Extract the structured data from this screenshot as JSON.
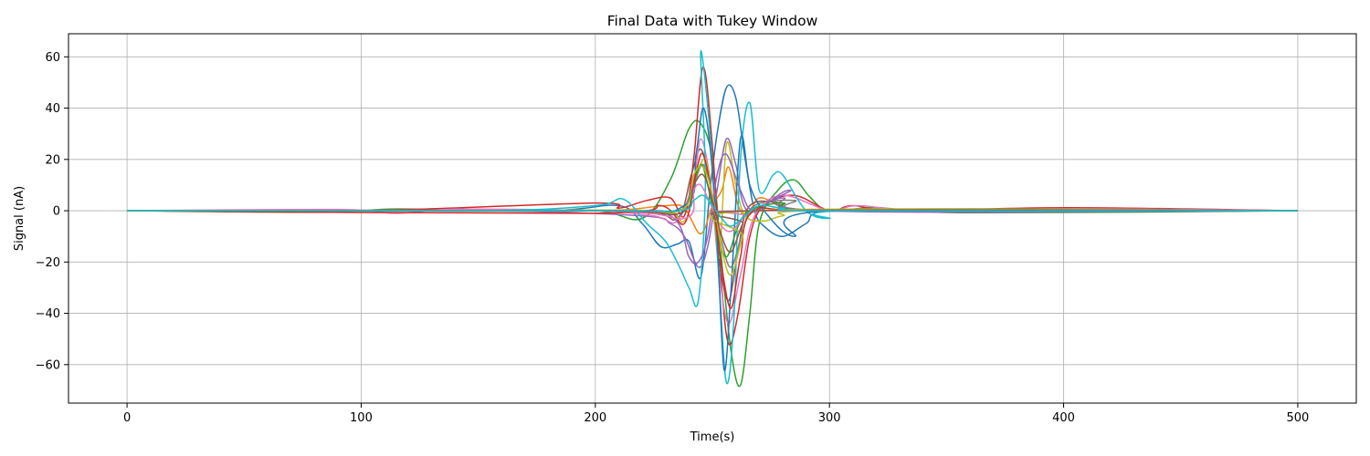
{
  "chart_data": {
    "type": "line",
    "title": "Final Data with Tukey Window",
    "xlabel": "Time(s)",
    "ylabel": "Signal (nA)",
    "xlim": [
      -25,
      525
    ],
    "ylim": [
      -75,
      69
    ],
    "xticks": [
      0,
      100,
      200,
      300,
      400,
      500
    ],
    "yticks": [
      -60,
      -40,
      -20,
      0,
      20,
      40,
      60
    ],
    "xtick_labels": [
      "0",
      "100",
      "200",
      "300",
      "400",
      "500"
    ],
    "ytick_labels": [
      "−60",
      "−40",
      "−20",
      "0",
      "20",
      "40",
      "60"
    ],
    "grid": true,
    "legend": "none",
    "series": [
      {
        "color": "#1f77b4",
        "points": [
          [
            0,
            0
          ],
          [
            100,
            0
          ],
          [
            180,
            0
          ],
          [
            210,
            2
          ],
          [
            220,
            -5
          ],
          [
            228,
            -14
          ],
          [
            235,
            -13
          ],
          [
            240,
            -12
          ],
          [
            245,
            -26
          ],
          [
            249,
            8
          ],
          [
            252,
            30
          ],
          [
            256,
            48
          ],
          [
            260,
            44
          ],
          [
            264,
            20
          ],
          [
            268,
            0
          ],
          [
            272,
            -6
          ],
          [
            280,
            -10
          ],
          [
            290,
            -5
          ],
          [
            300,
            0
          ],
          [
            360,
            0
          ],
          [
            500,
            0
          ]
        ]
      },
      {
        "color": "#ff7f0e",
        "points": [
          [
            0,
            0
          ],
          [
            100,
            0
          ],
          [
            200,
            0
          ],
          [
            230,
            2
          ],
          [
            238,
            1
          ],
          [
            245,
            -9
          ],
          [
            250,
            2
          ],
          [
            254,
            8
          ],
          [
            257,
            17
          ],
          [
            261,
            2
          ],
          [
            265,
            -2
          ],
          [
            270,
            5
          ],
          [
            280,
            2
          ],
          [
            300,
            0
          ],
          [
            500,
            0
          ]
        ]
      },
      {
        "color": "#2ca02c",
        "points": [
          [
            0,
            0
          ],
          [
            80,
            -0.6
          ],
          [
            115,
            0.7
          ],
          [
            150,
            0
          ],
          [
            200,
            0
          ],
          [
            220,
            -3
          ],
          [
            232,
            12
          ],
          [
            240,
            32
          ],
          [
            245,
            34
          ],
          [
            250,
            20
          ],
          [
            254,
            -20
          ],
          [
            258,
            -55
          ],
          [
            262,
            -68
          ],
          [
            266,
            -40
          ],
          [
            270,
            -5
          ],
          [
            278,
            8
          ],
          [
            285,
            12
          ],
          [
            292,
            5
          ],
          [
            300,
            0
          ],
          [
            320,
            1.2
          ],
          [
            360,
            -0.8
          ],
          [
            500,
            0
          ]
        ]
      },
      {
        "color": "#d62728",
        "points": [
          [
            0,
            0
          ],
          [
            100,
            0
          ],
          [
            200,
            3
          ],
          [
            210,
            1
          ],
          [
            222,
            4
          ],
          [
            232,
            5
          ],
          [
            238,
            -2
          ],
          [
            242,
            20
          ],
          [
            246,
            56
          ],
          [
            250,
            25
          ],
          [
            254,
            -30
          ],
          [
            257,
            -52
          ],
          [
            261,
            -40
          ],
          [
            266,
            -10
          ],
          [
            272,
            2
          ],
          [
            285,
            6
          ],
          [
            300,
            0
          ],
          [
            310,
            2
          ],
          [
            330,
            0
          ],
          [
            402,
            1.2
          ],
          [
            500,
            0
          ]
        ]
      },
      {
        "color": "#9467bd",
        "points": [
          [
            0,
            0
          ],
          [
            150,
            0
          ],
          [
            220,
            -2
          ],
          [
            232,
            -5
          ],
          [
            238,
            -10
          ],
          [
            244,
            -22
          ],
          [
            248,
            -14
          ],
          [
            252,
            8
          ],
          [
            256,
            28
          ],
          [
            260,
            18
          ],
          [
            265,
            0
          ],
          [
            280,
            5
          ],
          [
            300,
            0
          ],
          [
            500,
            0
          ]
        ]
      },
      {
        "color": "#8c564b",
        "points": [
          [
            0,
            0
          ],
          [
            150,
            0
          ],
          [
            220,
            0
          ],
          [
            235,
            -3
          ],
          [
            241,
            14
          ],
          [
            245,
            24
          ],
          [
            249,
            10
          ],
          [
            253,
            -20
          ],
          [
            257,
            -35
          ],
          [
            261,
            -15
          ],
          [
            266,
            2
          ],
          [
            280,
            3
          ],
          [
            300,
            0
          ],
          [
            500,
            0
          ]
        ]
      },
      {
        "color": "#e377c2",
        "points": [
          [
            0,
            0
          ],
          [
            90,
            0.5
          ],
          [
            115,
            -1
          ],
          [
            140,
            0.6
          ],
          [
            200,
            0
          ],
          [
            225,
            -2
          ],
          [
            235,
            -4
          ],
          [
            242,
            12
          ],
          [
            245,
            28
          ],
          [
            249,
            12
          ],
          [
            253,
            -25
          ],
          [
            257,
            -44
          ],
          [
            262,
            -25
          ],
          [
            268,
            -2
          ],
          [
            280,
            6
          ],
          [
            300,
            0
          ],
          [
            312,
            2
          ],
          [
            340,
            0
          ],
          [
            405,
            0.8
          ],
          [
            500,
            0
          ]
        ]
      },
      {
        "color": "#7f7f7f",
        "points": [
          [
            0,
            0
          ],
          [
            150,
            0
          ],
          [
            225,
            0
          ],
          [
            236,
            -2
          ],
          [
            242,
            10
          ],
          [
            246,
            18
          ],
          [
            250,
            6
          ],
          [
            254,
            -12
          ],
          [
            258,
            -22
          ],
          [
            263,
            -8
          ],
          [
            268,
            2
          ],
          [
            285,
            4
          ],
          [
            300,
            0
          ],
          [
            500,
            0
          ]
        ]
      },
      {
        "color": "#bcbd22",
        "points": [
          [
            0,
            0
          ],
          [
            150,
            0
          ],
          [
            225,
            0
          ],
          [
            238,
            -4
          ],
          [
            243,
            13
          ],
          [
            247,
            20
          ],
          [
            250,
            5
          ],
          [
            253,
            -18
          ],
          [
            256,
            26
          ],
          [
            260,
            10
          ],
          [
            264,
            -2
          ],
          [
            272,
            -4
          ],
          [
            280,
            -2
          ],
          [
            300,
            0
          ],
          [
            500,
            0
          ]
        ]
      },
      {
        "color": "#17becf",
        "points": [
          [
            0,
            0
          ],
          [
            150,
            0
          ],
          [
            200,
            2
          ],
          [
            212,
            4.5
          ],
          [
            222,
            -5
          ],
          [
            230,
            -12
          ],
          [
            236,
            -22
          ],
          [
            240,
            -30
          ],
          [
            244,
            -35
          ],
          [
            247,
            10
          ],
          [
            245,
            62
          ],
          [
            249,
            30
          ],
          [
            253,
            -30
          ],
          [
            256,
            -67
          ],
          [
            259,
            -45
          ],
          [
            262,
            20
          ],
          [
            266,
            42
          ],
          [
            270,
            8
          ],
          [
            276,
            14
          ],
          [
            280,
            14
          ],
          [
            290,
            0
          ],
          [
            300,
            -3
          ],
          [
            310,
            0
          ],
          [
            500,
            0
          ]
        ]
      },
      {
        "color": "#1f77b4",
        "points": [
          [
            0,
            0
          ],
          [
            200,
            0
          ],
          [
            238,
            2
          ],
          [
            243,
            22
          ],
          [
            246,
            40
          ],
          [
            249,
            25
          ],
          [
            252,
            -10
          ],
          [
            255,
            -62
          ],
          [
            258,
            -30
          ],
          [
            262,
            28
          ],
          [
            266,
            10
          ],
          [
            272,
            0
          ],
          [
            285,
            -10
          ],
          [
            300,
            0
          ],
          [
            500,
            0
          ]
        ]
      },
      {
        "color": "#9467bd",
        "points": [
          [
            0,
            0
          ],
          [
            200,
            0
          ],
          [
            232,
            -2
          ],
          [
            240,
            -18
          ],
          [
            244,
            -20
          ],
          [
            248,
            -10
          ],
          [
            252,
            14
          ],
          [
            256,
            22
          ],
          [
            262,
            8
          ],
          [
            268,
            0
          ],
          [
            283,
            8
          ],
          [
            295,
            0
          ],
          [
            500,
            0
          ]
        ]
      },
      {
        "color": "#2ca02c",
        "points": [
          [
            0,
            0
          ],
          [
            200,
            0
          ],
          [
            235,
            0
          ],
          [
            241,
            8
          ],
          [
            245,
            18
          ],
          [
            248,
            10
          ],
          [
            252,
            -8
          ],
          [
            256,
            -18
          ],
          [
            261,
            -6
          ],
          [
            266,
            0
          ],
          [
            280,
            3
          ],
          [
            300,
            0
          ],
          [
            500,
            0
          ]
        ]
      },
      {
        "color": "#d62728",
        "points": [
          [
            0,
            0
          ],
          [
            200,
            -1
          ],
          [
            228,
            2
          ],
          [
            238,
            -5
          ],
          [
            243,
            15
          ],
          [
            246,
            22
          ],
          [
            250,
            5
          ],
          [
            254,
            -22
          ],
          [
            258,
            -38
          ],
          [
            262,
            -18
          ],
          [
            268,
            0
          ],
          [
            300,
            0
          ],
          [
            500,
            0
          ]
        ]
      },
      {
        "color": "#e377c2",
        "points": [
          [
            0,
            0
          ],
          [
            200,
            0
          ],
          [
            238,
            -3
          ],
          [
            242,
            8
          ],
          [
            245,
            10
          ],
          [
            249,
            3
          ],
          [
            253,
            -5
          ],
          [
            258,
            -8
          ],
          [
            264,
            -2
          ],
          [
            270,
            0
          ],
          [
            500,
            0
          ]
        ]
      },
      {
        "color": "#bcbd22",
        "points": [
          [
            0,
            0
          ],
          [
            200,
            0
          ],
          [
            236,
            0
          ],
          [
            242,
            14
          ],
          [
            246,
            17
          ],
          [
            250,
            6
          ],
          [
            254,
            -15
          ],
          [
            258,
            -25
          ],
          [
            263,
            -10
          ],
          [
            268,
            0
          ],
          [
            500,
            0
          ]
        ]
      },
      {
        "color": "#8c564b",
        "points": [
          [
            0,
            0
          ],
          [
            200,
            0
          ],
          [
            236,
            -1
          ],
          [
            242,
            10
          ],
          [
            246,
            14
          ],
          [
            250,
            4
          ],
          [
            254,
            -10
          ],
          [
            258,
            -16
          ],
          [
            263,
            -5
          ],
          [
            268,
            0
          ],
          [
            500,
            0
          ]
        ]
      },
      {
        "color": "#17becf",
        "points": [
          [
            0,
            0
          ],
          [
            200,
            0
          ],
          [
            236,
            0
          ],
          [
            242,
            4
          ],
          [
            246,
            6
          ],
          [
            250,
            2
          ],
          [
            254,
            -3
          ],
          [
            258,
            -6
          ],
          [
            264,
            -2
          ],
          [
            270,
            2
          ],
          [
            280,
            1
          ],
          [
            300,
            0
          ],
          [
            500,
            0
          ]
        ]
      }
    ]
  }
}
